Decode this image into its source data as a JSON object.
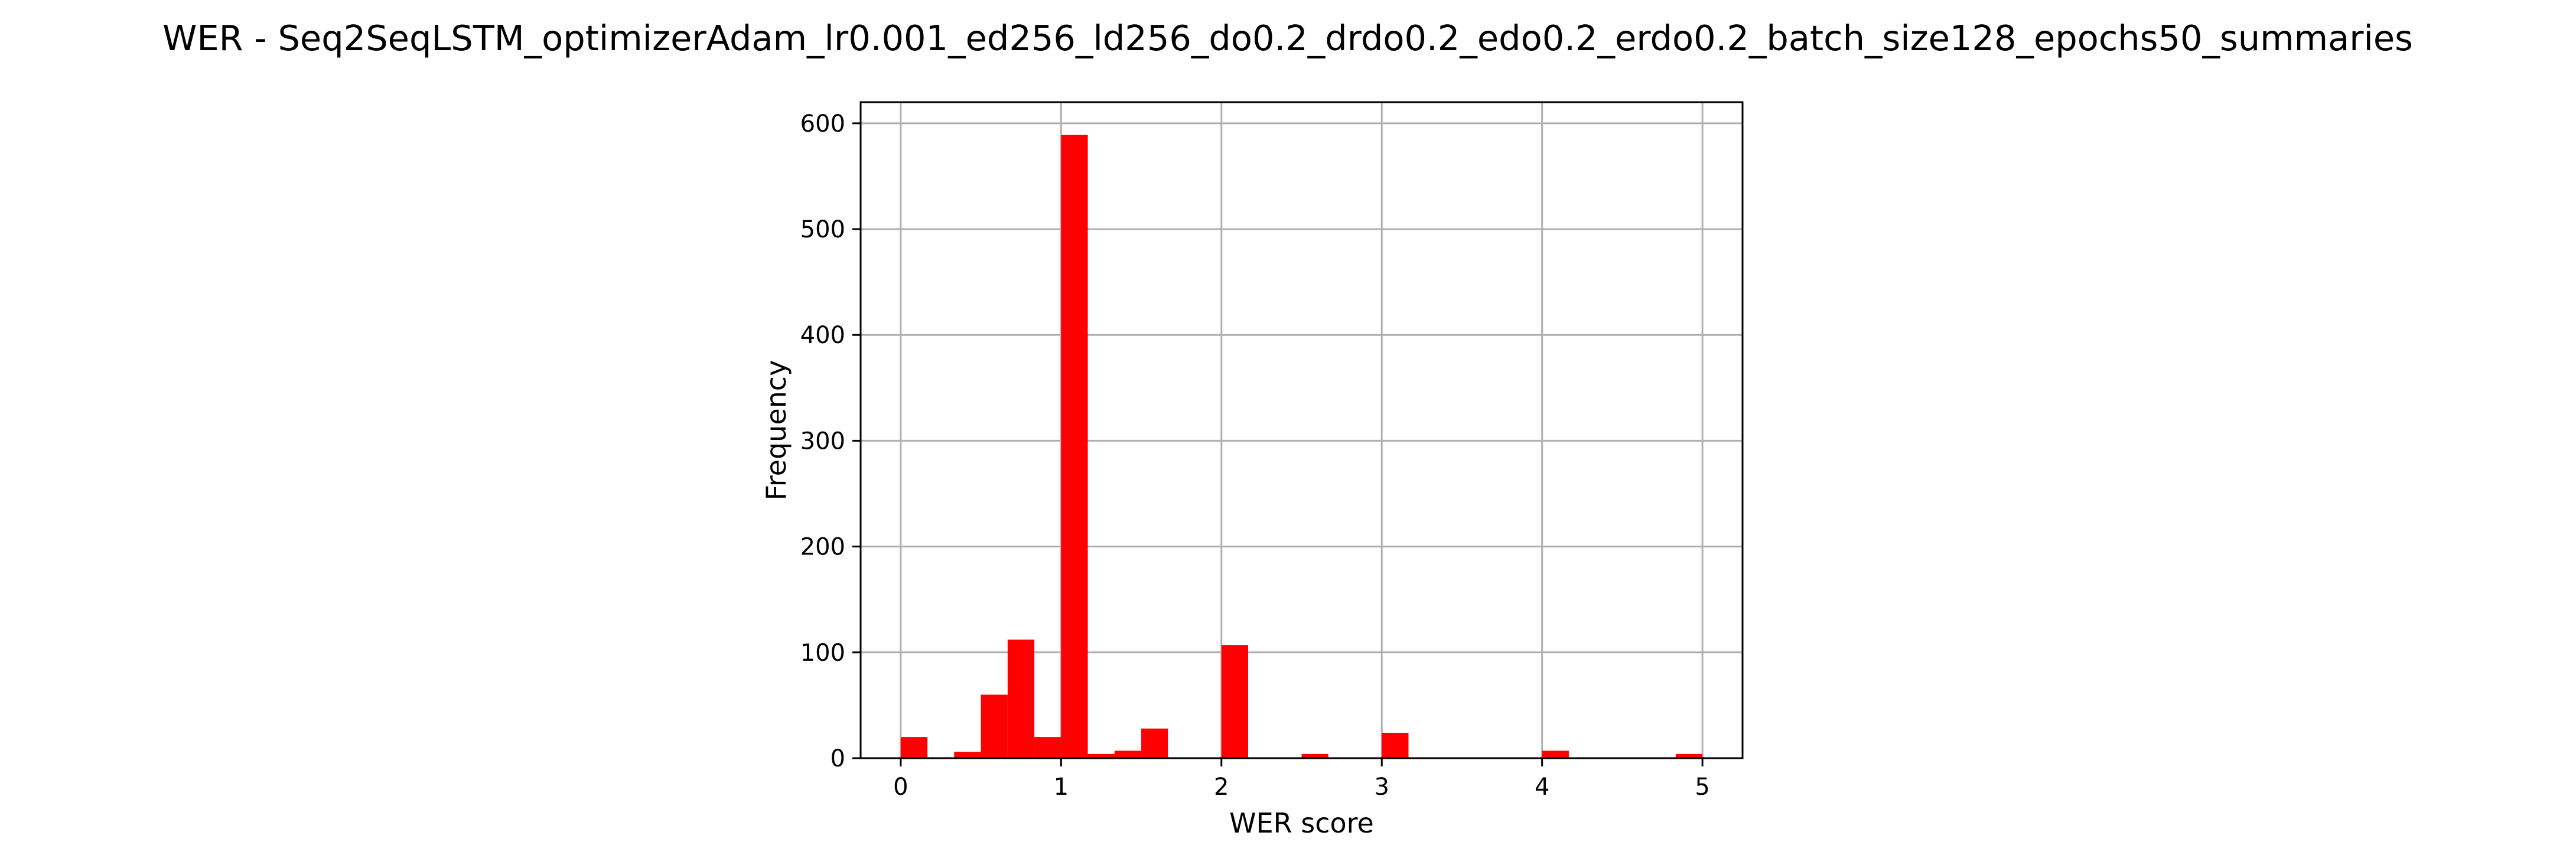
{
  "chart_data": {
    "type": "bar",
    "title": "WER - Seq2SeqLSTM_optimizerAdam_lr0.001_ed256_ld256_do0.2_drdo0.2_edo0.2_erdo0.2_batch_size128_epochs50_summaries",
    "xlabel": "WER score",
    "ylabel": "Frequency",
    "xlim": [
      -0.25,
      5.25
    ],
    "ylim": [
      0,
      620
    ],
    "xticks": [
      "0",
      "1",
      "2",
      "3",
      "4",
      "5"
    ],
    "yticks": [
      "0",
      "100",
      "200",
      "300",
      "400",
      "500",
      "600"
    ],
    "grid": true,
    "bar_color": "#ff0000",
    "bin_width": 0.1667,
    "bins": [
      {
        "x0": 0.0,
        "value": 20
      },
      {
        "x0": 0.3333,
        "value": 6
      },
      {
        "x0": 0.5,
        "value": 60
      },
      {
        "x0": 0.6667,
        "value": 112
      },
      {
        "x0": 0.8333,
        "value": 20
      },
      {
        "x0": 1.0,
        "value": 589
      },
      {
        "x0": 1.1667,
        "value": 4
      },
      {
        "x0": 1.3333,
        "value": 7
      },
      {
        "x0": 1.5,
        "value": 28
      },
      {
        "x0": 2.0,
        "value": 107
      },
      {
        "x0": 2.5,
        "value": 4
      },
      {
        "x0": 3.0,
        "value": 24
      },
      {
        "x0": 4.0,
        "value": 7
      },
      {
        "x0": 4.8333,
        "value": 4
      }
    ]
  }
}
